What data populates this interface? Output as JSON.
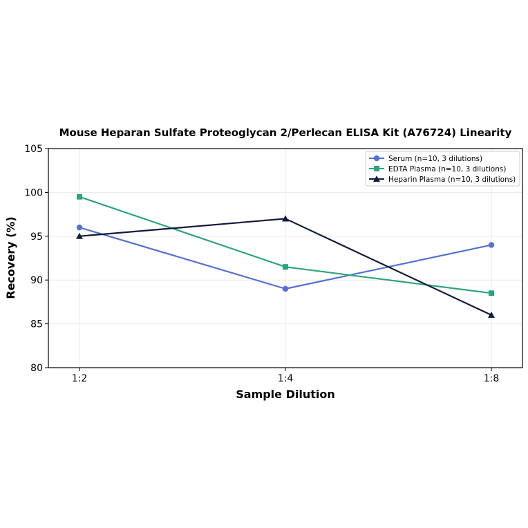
{
  "chart_data": {
    "type": "line",
    "title": "Mouse Heparan Sulfate Proteoglycan 2/Perlecan ELISA Kit (A76724) Linearity",
    "xlabel": "Sample Dilution",
    "ylabel": "Recovery (%)",
    "categories": [
      "1:2",
      "1:4",
      "1:8"
    ],
    "ylim": [
      80,
      105
    ],
    "yticks": [
      80,
      85,
      90,
      95,
      100,
      105
    ],
    "grid": true,
    "legend_position": "top-right",
    "series": [
      {
        "name": "Serum (n=10, 3 dilutions)",
        "values": [
          96,
          89,
          94
        ],
        "color": "#5470d6",
        "marker": "circle"
      },
      {
        "name": "EDTA Plasma (n=10, 3 dilutions)",
        "values": [
          99.5,
          91.5,
          88.5
        ],
        "color": "#2aa57a",
        "marker": "square"
      },
      {
        "name": "Heparin Plasma (n=10, 3 dilutions)",
        "values": [
          95,
          97,
          86
        ],
        "color": "#101a3d",
        "marker": "triangle"
      }
    ]
  }
}
